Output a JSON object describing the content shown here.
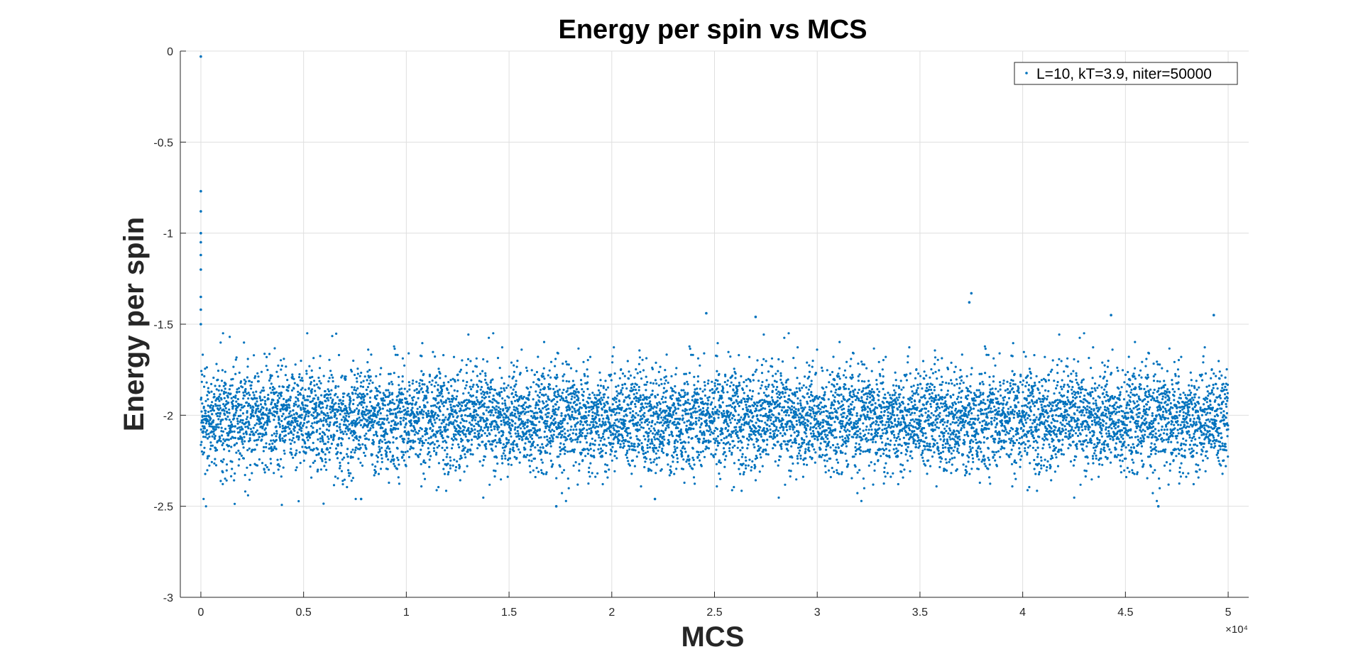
{
  "chart_data": {
    "type": "scatter",
    "title": "Energy per spin vs MCS",
    "xlabel": "MCS",
    "ylabel": "Energy per spin",
    "x_exponent_label": "×10⁴",
    "xlim": [
      -0.1,
      5.1
    ],
    "ylim": [
      -3,
      0
    ],
    "x_ticks": [
      0,
      0.5,
      1,
      1.5,
      2,
      2.5,
      3,
      3.5,
      4,
      4.5,
      5
    ],
    "x_tick_labels": [
      "0",
      "0.5",
      "1",
      "1.5",
      "2",
      "2.5",
      "3",
      "3.5",
      "4",
      "4.5",
      "5"
    ],
    "y_ticks": [
      0,
      -0.5,
      -1,
      -1.5,
      -2,
      -2.5,
      -3
    ],
    "y_tick_labels": [
      "0",
      "-0.5",
      "-1",
      "-1.5",
      "-2",
      "-2.5",
      "-3"
    ],
    "grid": true,
    "legend_position": "top-right",
    "marker_color": "#0072BD",
    "series": [
      {
        "name": "L=10, kT=3.9, niter=50000",
        "num_points": 50000,
        "x_range": [
          0,
          5
        ],
        "equilibrium_mean": -2.02,
        "equilibrium_std": 0.14,
        "typical_min": -2.5,
        "typical_max": -1.55,
        "initial_transient": [
          {
            "x": 0.0,
            "y": -0.03
          },
          {
            "x": 0.0,
            "y": -0.77
          },
          {
            "x": 0.0,
            "y": -0.88
          },
          {
            "x": 0.0,
            "y": -1.0
          },
          {
            "x": 0.0,
            "y": -1.05
          },
          {
            "x": 0.0,
            "y": -1.12
          },
          {
            "x": 0.0,
            "y": -1.2
          },
          {
            "x": 0.0,
            "y": -1.35
          },
          {
            "x": 0.0,
            "y": -1.42
          },
          {
            "x": 0.0,
            "y": -1.5
          }
        ],
        "notable_points": [
          {
            "x": 2.46,
            "y": -1.44
          },
          {
            "x": 2.7,
            "y": -1.46
          },
          {
            "x": 3.75,
            "y": -1.33
          },
          {
            "x": 3.74,
            "y": -1.38
          },
          {
            "x": 4.43,
            "y": -1.45
          },
          {
            "x": 4.93,
            "y": -1.45
          },
          {
            "x": 1.73,
            "y": -2.5
          },
          {
            "x": 4.66,
            "y": -2.5
          },
          {
            "x": 0.78,
            "y": -2.46
          },
          {
            "x": 2.21,
            "y": -2.46
          }
        ]
      }
    ]
  }
}
